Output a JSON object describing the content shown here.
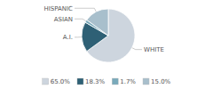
{
  "chart_data": {
    "type": "pie",
    "categories": [
      "WHITE",
      "A.I.",
      "ASIAN",
      "HISPANIC"
    ],
    "values": [
      65.0,
      18.3,
      1.7,
      15.0
    ],
    "value_labels": [
      "65.0%",
      "18.3%",
      "1.7%",
      "15.0%"
    ],
    "colors": [
      "#cdd5de",
      "#2e6075",
      "#7aaabb",
      "#a8bfcc"
    ],
    "legend": "bottom"
  }
}
